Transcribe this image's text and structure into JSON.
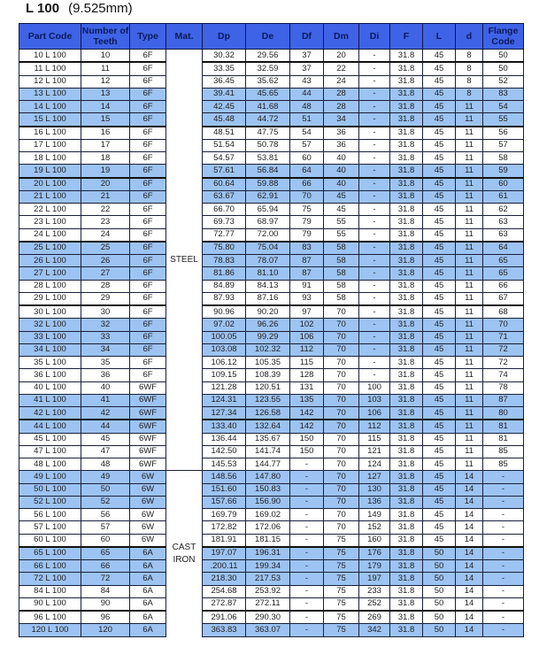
{
  "title": {
    "code": "L 100",
    "pitch": "(9.525mm)"
  },
  "colors": {
    "header_bg": "#3f63e6",
    "header_text": "#0b1a5a",
    "highlight_row": "#9cc3f2"
  },
  "table": {
    "headers": [
      "Part Code",
      "Number of Teeth",
      "Type",
      "Mat.",
      "Dp",
      "De",
      "Df",
      "Dm",
      "Di",
      "F",
      "L",
      "d",
      "Flange Code"
    ],
    "materials": {
      "steel": "STEEL",
      "cast_iron": "CAST IRON"
    },
    "rows": [
      [
        "10 L 100",
        "10",
        "6F",
        "30.32",
        "29.56",
        "37",
        "20",
        "-",
        "31.8",
        "45",
        "8",
        "50"
      ],
      [
        "11 L 100",
        "11",
        "6F",
        "33.35",
        "32.59",
        "37",
        "22",
        "-",
        "31.8",
        "45",
        "8",
        "50"
      ],
      [
        "12 L 100",
        "12",
        "6F",
        "36.45",
        "35.62",
        "43",
        "24",
        "-",
        "31.8",
        "45",
        "8",
        "52"
      ],
      [
        "13 L 100",
        "13",
        "6F",
        "39.41",
        "45.65",
        "44",
        "28",
        "-",
        "31.8",
        "45",
        "8",
        "83"
      ],
      [
        "14 L 100",
        "14",
        "6F",
        "42.45",
        "41.68",
        "48",
        "28",
        "-",
        "31.8",
        "45",
        "11",
        "54"
      ],
      [
        "15 L 100",
        "15",
        "6F",
        "45.48",
        "44.72",
        "51",
        "34",
        "-",
        "31.8",
        "45",
        "11",
        "55"
      ],
      [
        "16 L 100",
        "16",
        "6F",
        "48.51",
        "47.75",
        "54",
        "36",
        "-",
        "31.8",
        "45",
        "11",
        "56"
      ],
      [
        "17 L 100",
        "17",
        "6F",
        "51.54",
        "50.78",
        "57",
        "36",
        "-",
        "31.8",
        "45",
        "11",
        "57"
      ],
      [
        "18 L 100",
        "18",
        "6F",
        "54.57",
        "53.81",
        "60",
        "40",
        "-",
        "31.8",
        "45",
        "11",
        "58"
      ],
      [
        "19 L 100",
        "19",
        "6F",
        "57.61",
        "56.84",
        "64",
        "40",
        "-",
        "31.8",
        "45",
        "11",
        "59"
      ],
      [
        "20 L 100",
        "20",
        "6F",
        "60.64",
        "59.88",
        "66",
        "40",
        "-",
        "31.8",
        "45",
        "11",
        "60"
      ],
      [
        "21 L 100",
        "21",
        "6F",
        "63.67",
        "62.91",
        "70",
        "45",
        "-",
        "31.8",
        "45",
        "11",
        "61"
      ],
      [
        "22 L 100",
        "22",
        "6F",
        "66.70",
        "65.94",
        "75",
        "45",
        "-",
        "31.8",
        "45",
        "11",
        "62"
      ],
      [
        "23 L 100",
        "23",
        "6F",
        "69.73",
        "68.97",
        "79",
        "55",
        "-",
        "31.8",
        "45",
        "11",
        "63"
      ],
      [
        "24 L 100",
        "24",
        "6F",
        "72.77",
        "72.00",
        "79",
        "55",
        "-",
        "31.8",
        "45",
        "11",
        "63"
      ],
      [
        "25 L 100",
        "25",
        "6F",
        "75.80",
        "75.04",
        "83",
        "58",
        "-",
        "31.8",
        "45",
        "11",
        "64"
      ],
      [
        "26 L 100",
        "26",
        "6F",
        "78.83",
        "78.07",
        "87",
        "58",
        "-",
        "31.8",
        "45",
        "11",
        "65"
      ],
      [
        "27 L 100",
        "27",
        "6F",
        "81.86",
        "81.10",
        "87",
        "58",
        "-",
        "31.8",
        "45",
        "11",
        "65"
      ],
      [
        "28 L 100",
        "28",
        "6F",
        "84.89",
        "84.13",
        "91",
        "58",
        "-",
        "31.8",
        "45",
        "11",
        "66"
      ],
      [
        "29 L 100",
        "29",
        "6F",
        "87.93",
        "87.16",
        "93",
        "58",
        "-",
        "31.8",
        "45",
        "11",
        "67"
      ],
      [
        "30 L 100",
        "30",
        "6F",
        "90.96",
        "90.20",
        "97",
        "70",
        "-",
        "31.8",
        "45",
        "11",
        "68"
      ],
      [
        "32 L 100",
        "32",
        "6F",
        "97.02",
        "96.26",
        "102",
        "70",
        "-",
        "31.8",
        "45",
        "11",
        "70"
      ],
      [
        "33 L 100",
        "33",
        "6F",
        "100.05",
        "99.29",
        "106",
        "70",
        "-",
        "31.8",
        "45",
        "11",
        "71"
      ],
      [
        "34 L 100",
        "34",
        "6F",
        "103.08",
        "102.32",
        "112",
        "70",
        "-",
        "31.8",
        "45",
        "11",
        "72"
      ],
      [
        "35 L 100",
        "35",
        "6F",
        "106.12",
        "105.35",
        "115",
        "70",
        "-",
        "31.8",
        "45",
        "11",
        "72"
      ],
      [
        "36 L 100",
        "36",
        "6F",
        "109.15",
        "108.39",
        "128",
        "70",
        "-",
        "31.8",
        "45",
        "11",
        "74"
      ],
      [
        "40 L 100",
        "40",
        "6WF",
        "121.28",
        "120.51",
        "131",
        "70",
        "100",
        "31.8",
        "45",
        "11",
        "78"
      ],
      [
        "41 L 100",
        "41",
        "6WF",
        "124.31",
        "123.55",
        "135",
        "70",
        "103",
        "31.8",
        "45",
        "11",
        "87"
      ],
      [
        "42 L 100",
        "42",
        "6WF",
        "127.34",
        "126.58",
        "142",
        "70",
        "106",
        "31.8",
        "45",
        "11",
        "80"
      ],
      [
        "44 L 100",
        "44",
        "6WF",
        "133.40",
        "132.64",
        "142",
        "70",
        "112",
        "31.8",
        "45",
        "11",
        "81"
      ],
      [
        "45 L 100",
        "45",
        "6WF",
        "136.44",
        "135.67",
        "150",
        "70",
        "115",
        "31.8",
        "45",
        "11",
        "81"
      ],
      [
        "47 L 100",
        "47",
        "6WF",
        "142.50",
        "141.74",
        "150",
        "70",
        "121",
        "31.8",
        "45",
        "11",
        "85"
      ],
      [
        "48 L 100",
        "48",
        "6WF",
        "145.53",
        "144.77",
        "-",
        "70",
        "124",
        "31.8",
        "45",
        "11",
        "85"
      ],
      [
        "49 L 100",
        "49",
        "6W",
        "148.56",
        "147.80",
        "-",
        "70",
        "127",
        "31.8",
        "45",
        "14",
        "-"
      ],
      [
        "50 L 100",
        "50",
        "6W",
        "151.60",
        "150.83",
        "-",
        "70",
        "130",
        "31.8",
        "45",
        "14",
        "-"
      ],
      [
        "52 L 100",
        "52",
        "6W",
        "157.66",
        "156.90",
        "-",
        "70",
        "136",
        "31.8",
        "45",
        "14",
        "-"
      ],
      [
        "56 L 100",
        "56",
        "6W",
        "169.79",
        "169.02",
        "-",
        "70",
        "149",
        "31.8",
        "45",
        "14",
        "-"
      ],
      [
        "57 L 100",
        "57",
        "6W",
        "172.82",
        "172.06",
        "-",
        "70",
        "152",
        "31.8",
        "45",
        "14",
        "-"
      ],
      [
        "60 L 100",
        "60",
        "6W",
        "181.91",
        "181.15",
        "-",
        "75",
        "160",
        "31.8",
        "45",
        "14",
        "-"
      ],
      [
        "65 L 100",
        "65",
        "6A",
        "197.07",
        "196.31",
        "-",
        "75",
        "176",
        "31.8",
        "50",
        "14",
        "-"
      ],
      [
        "66 L 100",
        "66",
        "6A",
        ".200.11",
        "199.34",
        "-",
        "75",
        "179",
        "31.8",
        "50",
        "14",
        "-"
      ],
      [
        "72 L 100",
        "72",
        "6A",
        "218.30",
        "217.53",
        "-",
        "75",
        "197",
        "31.8",
        "50",
        "14",
        "-"
      ],
      [
        "84 L 100",
        "84",
        "6A",
        "254.68",
        "253.92",
        "-",
        "75",
        "233",
        "31.8",
        "50",
        "14",
        "-"
      ],
      [
        "90 L 100",
        "90",
        "6A",
        "272.87",
        "272.11",
        "-",
        "75",
        "252",
        "31.8",
        "50",
        "14",
        "-"
      ],
      [
        "96 L 100",
        "96",
        "6A",
        "291.06",
        "290.30",
        "-",
        "75",
        "269",
        "31.8",
        "50",
        "14",
        "-"
      ],
      [
        "120 L 100",
        "120",
        "6A",
        "363.83",
        "363.07",
        "-",
        "75",
        "342",
        "31.8",
        "50",
        "14",
        "-"
      ]
    ],
    "highlighted_rows": [
      "13 L 100",
      "14 L 100",
      "15 L 100",
      "19 L 100",
      "20 L 100",
      "21 L 100",
      "25 L 100",
      "26 L 100",
      "27 L 100",
      "32 L 100",
      "33 L 100",
      "34 L 100",
      "41 L 100",
      "42 L 100",
      "44 L 100",
      "49 L 100",
      "50 L 100",
      "52 L 100",
      "65 L 100",
      "66 L 100",
      "72 L 100",
      "120 L 100"
    ]
  }
}
